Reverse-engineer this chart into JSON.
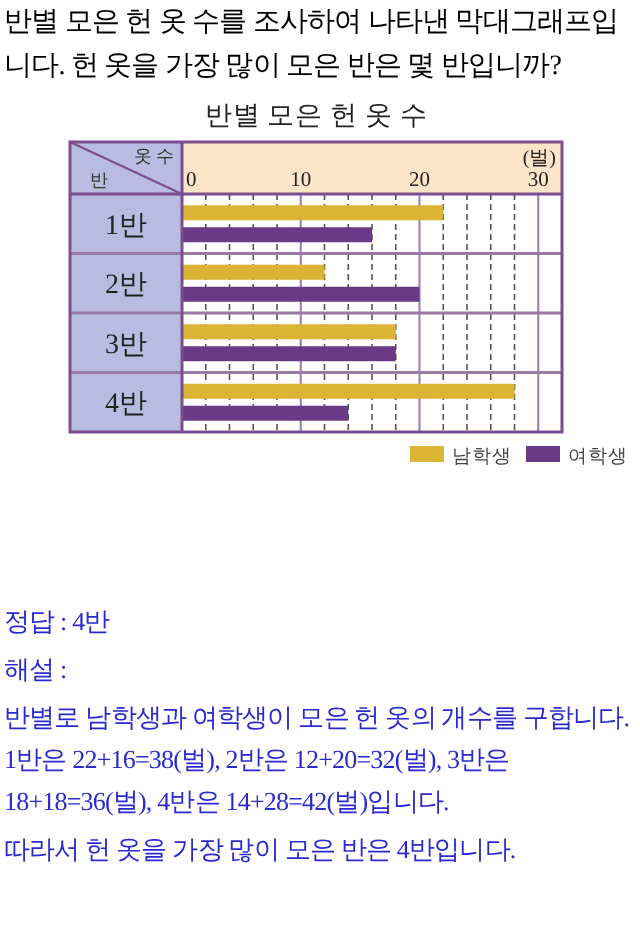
{
  "chart_data": {
    "type": "bar",
    "orientation": "horizontal",
    "title": "반별 모은 헌 옷 수",
    "xlabel": "옷 수",
    "ylabel": "반",
    "categories": [
      "1반",
      "2반",
      "3반",
      "4반"
    ],
    "series": [
      {
        "name": "남학생",
        "color": "#dcb435",
        "values": [
          22,
          12,
          18,
          28
        ]
      },
      {
        "name": "여학생",
        "color": "#6a3a86",
        "values": [
          16,
          20,
          18,
          14
        ]
      }
    ],
    "xlim": [
      0,
      32
    ],
    "xticks": [
      0,
      {
        "value": 2,
        "label": null
      },
      {
        "value": 4,
        "label": null
      },
      {
        "value": 6,
        "label": null
      },
      {
        "value": 8,
        "label": null
      },
      10,
      {
        "value": 12,
        "label": null
      },
      {
        "value": 14,
        "label": null
      },
      {
        "value": 16,
        "label": null
      },
      {
        "value": 18,
        "label": null
      },
      20,
      {
        "value": 22,
        "label": null
      },
      {
        "value": 24,
        "label": null
      },
      {
        "value": 26,
        "label": null
      },
      {
        "value": 28,
        "label": null
      },
      30
    ],
    "grid": "x",
    "legend": "bottom right",
    "annotations": [
      "반별 모은 헌 옷 수를 조사하여 나타낸 막대그래프입니다. 헌 옷을 가장 많이 모은 반은 몇 반입니까?",
      "(벌)",
      "정답 : 4반",
      "해설 :",
      "반별로 남학생과 여학생이 모은 헌 옷의 개수를 구합니다. 1반은 22+16=38(벌), 2반은 12+20=32(벌), 3반은 18+18=36(벌), 4반은 14+28=42(벌)입니다.",
      "따라서 헌 옷을 가장 많이 모은 반은 4반입니다."
    ]
  }
}
